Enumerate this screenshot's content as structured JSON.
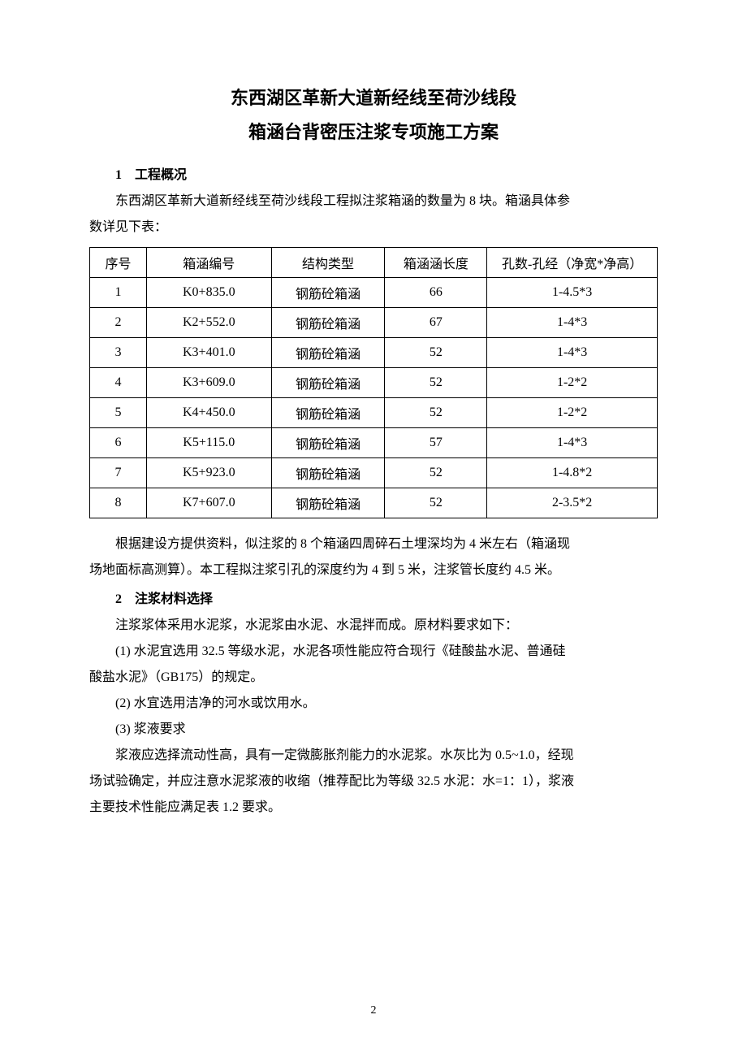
{
  "title_line1": "东西湖区革新大道新经线至荷沙线段",
  "title_line2": "箱涵台背密压注浆专项施工方案",
  "section1": {
    "heading": "1　工程概况",
    "para1a": "东西湖区革新大道新经线至荷沙线段工程拟注浆箱涵的数量为 8 块。箱涵具体参",
    "para1b": "数详见下表：",
    "para2a": "根据建设方提供资料，似注浆的 8 个箱涵四周碎石土埋深均为 4 米左右（箱涵现",
    "para2b": "场地面标高测算）。本工程拟注浆引孔的深度约为 4 到 5 米，注浆管长度约 4.5 米。"
  },
  "table": {
    "headers": {
      "seq": "序号",
      "code": "箱涵编号",
      "type": "结构类型",
      "length": "箱涵涵长度",
      "holes": "孔数-孔经（净宽*净高）"
    },
    "rows": [
      {
        "seq": "1",
        "code": "K0+835.0",
        "type": "钢筋砼箱涵",
        "length": "66",
        "holes": "1-4.5*3"
      },
      {
        "seq": "2",
        "code": "K2+552.0",
        "type": "钢筋砼箱涵",
        "length": "67",
        "holes": "1-4*3"
      },
      {
        "seq": "3",
        "code": "K3+401.0",
        "type": "钢筋砼箱涵",
        "length": "52",
        "holes": "1-4*3"
      },
      {
        "seq": "4",
        "code": "K3+609.0",
        "type": "钢筋砼箱涵",
        "length": "52",
        "holes": "1-2*2"
      },
      {
        "seq": "5",
        "code": "K4+450.0",
        "type": "钢筋砼箱涵",
        "length": "52",
        "holes": "1-2*2"
      },
      {
        "seq": "6",
        "code": "K5+115.0",
        "type": "钢筋砼箱涵",
        "length": "57",
        "holes": "1-4*3"
      },
      {
        "seq": "7",
        "code": "K5+923.0",
        "type": "钢筋砼箱涵",
        "length": "52",
        "holes": "1-4.8*2"
      },
      {
        "seq": "8",
        "code": "K7+607.0",
        "type": "钢筋砼箱涵",
        "length": "52",
        "holes": "2-3.5*2"
      }
    ]
  },
  "section2": {
    "heading": "2　注浆材料选择",
    "para1": "注浆浆体采用水泥浆，水泥浆由水泥、水混拌而成。原材料要求如下：",
    "item1a": "(1) 水泥宜选用 32.5 等级水泥，水泥各项性能应符合现行《硅酸盐水泥、普通硅",
    "item1b": "酸盐水泥》（GB175）的规定。",
    "item2": "(2) 水宜选用洁净的河水或饮用水。",
    "item3": "(3) 浆液要求",
    "para2a": "浆液应选择流动性高，具有一定微膨胀剂能力的水泥浆。水灰比为 0.5~1.0，经现",
    "para2b": "场试验确定，并应注意水泥浆液的收缩（推荐配比为等级 32.5 水泥：水=1：1），浆液",
    "para2c": "主要技术性能应满足表 1.2 要求。"
  },
  "page_number": "2"
}
